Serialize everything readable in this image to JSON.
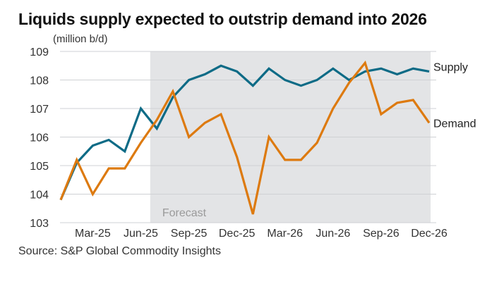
{
  "title": "Liquids supply expected to outstrip demand into 2026",
  "source": "Source: S&P Global Commodity Insights",
  "chart_data": {
    "type": "line",
    "ylabel": "(million b/d)",
    "ylim": [
      103,
      109
    ],
    "yticks": [
      103,
      104,
      105,
      106,
      107,
      108,
      109
    ],
    "x": [
      "Jan-25",
      "Feb-25",
      "Mar-25",
      "Apr-25",
      "May-25",
      "Jun-25",
      "Jul-25",
      "Aug-25",
      "Sep-25",
      "Oct-25",
      "Nov-25",
      "Dec-25",
      "Jan-26",
      "Feb-26",
      "Mar-26",
      "Apr-26",
      "May-26",
      "Jun-26",
      "Jul-26",
      "Aug-26",
      "Sep-26",
      "Oct-26",
      "Nov-26",
      "Dec-26"
    ],
    "xtick_labels": [
      "Mar-25",
      "Jun-25",
      "Sep-25",
      "Dec-25",
      "Mar-26",
      "Jun-26",
      "Sep-26",
      "Dec-26"
    ],
    "series": [
      {
        "name": "Supply",
        "color": "#0e6b86",
        "values": [
          103.8,
          105.1,
          105.7,
          105.9,
          105.5,
          107.0,
          106.3,
          107.4,
          108.0,
          108.2,
          108.5,
          108.3,
          107.8,
          108.4,
          108.0,
          107.8,
          108.0,
          108.4,
          108.0,
          108.3,
          108.4,
          108.2,
          108.4,
          108.3
        ]
      },
      {
        "name": "Demand",
        "color": "#dd7a10",
        "values": [
          103.8,
          105.2,
          104.0,
          104.9,
          104.9,
          105.8,
          106.6,
          107.6,
          106.0,
          106.5,
          106.8,
          105.3,
          103.3,
          106.0,
          105.2,
          105.2,
          105.8,
          107.0,
          107.9,
          108.6,
          106.8,
          107.2,
          107.3,
          106.5
        ]
      }
    ],
    "forecast": {
      "label": "Forecast",
      "start": "Jul-25",
      "end": "Dec-26",
      "color": "#e3e4e6"
    },
    "grid": true,
    "legend": "end-of-line labels"
  }
}
